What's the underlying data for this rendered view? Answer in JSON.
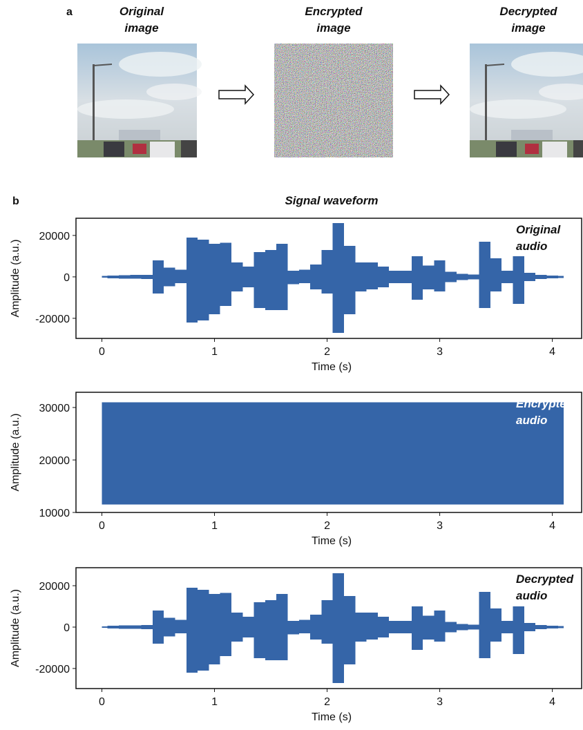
{
  "panel_a": {
    "label": "a",
    "images": [
      {
        "title": [
          "Original",
          "image"
        ]
      },
      {
        "title": [
          "Encrypted",
          "image"
        ]
      },
      {
        "title": [
          "Decrypted",
          "image"
        ]
      }
    ]
  },
  "panel_b": {
    "label": "b",
    "title": "Signal waveform"
  },
  "chart_data": [
    {
      "type": "waveform",
      "annotation": [
        "Original",
        "audio"
      ],
      "xlabel": "Time (s)",
      "ylabel": "Amplitude (a.u.)",
      "color": "#3565a8",
      "x": [
        0,
        0.1,
        0.2,
        0.3,
        0.4,
        0.5,
        0.6,
        0.7,
        0.8,
        0.9,
        1.0,
        1.1,
        1.2,
        1.3,
        1.4,
        1.5,
        1.6,
        1.7,
        1.8,
        1.9,
        2.0,
        2.1,
        2.2,
        2.3,
        2.4,
        2.5,
        2.6,
        2.7,
        2.8,
        2.9,
        3.0,
        3.1,
        3.2,
        3.3,
        3.4,
        3.5,
        3.6,
        3.7,
        3.8,
        3.9,
        4.0,
        4.1
      ],
      "upper": [
        400,
        700,
        800,
        900,
        1000,
        8000,
        4500,
        3500,
        19000,
        18000,
        16000,
        16500,
        7000,
        5000,
        12000,
        13000,
        16000,
        3000,
        3500,
        6000,
        13000,
        26000,
        15000,
        7000,
        7000,
        5000,
        3000,
        3000,
        10000,
        5500,
        8000,
        2500,
        1500,
        1200,
        17000,
        9000,
        3000,
        10000,
        2000,
        1000,
        700,
        500
      ],
      "lower": [
        -400,
        -700,
        -800,
        -900,
        -1000,
        -8000,
        -4500,
        -3000,
        -22000,
        -21000,
        -18000,
        -14000,
        -7000,
        -5000,
        -15000,
        -16000,
        -16000,
        -3500,
        -3000,
        -6000,
        -8000,
        -27000,
        -18000,
        -7000,
        -6000,
        -5000,
        -3000,
        -3000,
        -11000,
        -6000,
        -7000,
        -2500,
        -1500,
        -1200,
        -15000,
        -7000,
        -3000,
        -13000,
        -2000,
        -1000,
        -700,
        -500
      ],
      "xlim": [
        -0.23,
        4.26
      ],
      "ylim": [
        -29700,
        28300
      ],
      "xticks": [
        0,
        1,
        2,
        3,
        4
      ],
      "yticks": [
        -20000,
        0,
        20000
      ]
    },
    {
      "type": "waveform",
      "annotation": [
        "Encrypted",
        "audio"
      ],
      "xlabel": "Time (s)",
      "ylabel": "Amplitude (a.u.)",
      "color": "#3565a8",
      "x": [
        0,
        4.1
      ],
      "upper": [
        31000,
        31000
      ],
      "lower": [
        11500,
        11500
      ],
      "xlim": [
        -0.23,
        4.26
      ],
      "ylim": [
        10000,
        32900
      ],
      "xticks": [
        0,
        1,
        2,
        3,
        4
      ],
      "yticks": [
        10000,
        20000,
        30000
      ]
    },
    {
      "type": "waveform",
      "annotation": [
        "Decrypted",
        "audio"
      ],
      "xlabel": "Time (s)",
      "ylabel": "Amplitude (a.u.)",
      "color": "#3565a8",
      "x": [
        0,
        0.1,
        0.2,
        0.3,
        0.4,
        0.5,
        0.6,
        0.7,
        0.8,
        0.9,
        1.0,
        1.1,
        1.2,
        1.3,
        1.4,
        1.5,
        1.6,
        1.7,
        1.8,
        1.9,
        2.0,
        2.1,
        2.2,
        2.3,
        2.4,
        2.5,
        2.6,
        2.7,
        2.8,
        2.9,
        3.0,
        3.1,
        3.2,
        3.3,
        3.4,
        3.5,
        3.6,
        3.7,
        3.8,
        3.9,
        4.0,
        4.1
      ],
      "upper": [
        400,
        700,
        800,
        900,
        1000,
        8000,
        4500,
        3500,
        19000,
        18000,
        16000,
        16500,
        7000,
        5000,
        12000,
        13000,
        16000,
        3000,
        3500,
        6000,
        13000,
        26000,
        15000,
        7000,
        7000,
        5000,
        3000,
        3000,
        10000,
        5500,
        8000,
        2500,
        1500,
        1200,
        17000,
        9000,
        3000,
        10000,
        2000,
        1000,
        700,
        500
      ],
      "lower": [
        -400,
        -700,
        -800,
        -900,
        -1000,
        -8000,
        -4500,
        -3000,
        -22000,
        -21000,
        -18000,
        -14000,
        -7000,
        -5000,
        -15000,
        -16000,
        -16000,
        -3500,
        -3000,
        -6000,
        -8000,
        -27000,
        -18000,
        -7000,
        -6000,
        -5000,
        -3000,
        -3000,
        -11000,
        -6000,
        -7000,
        -2500,
        -1500,
        -1200,
        -15000,
        -7000,
        -3000,
        -13000,
        -2000,
        -1000,
        -700,
        -500
      ],
      "xlim": [
        -0.23,
        4.26
      ],
      "ylim": [
        -29700,
        28700
      ],
      "xticks": [
        0,
        1,
        2,
        3,
        4
      ],
      "yticks": [
        -20000,
        0,
        20000
      ]
    }
  ]
}
